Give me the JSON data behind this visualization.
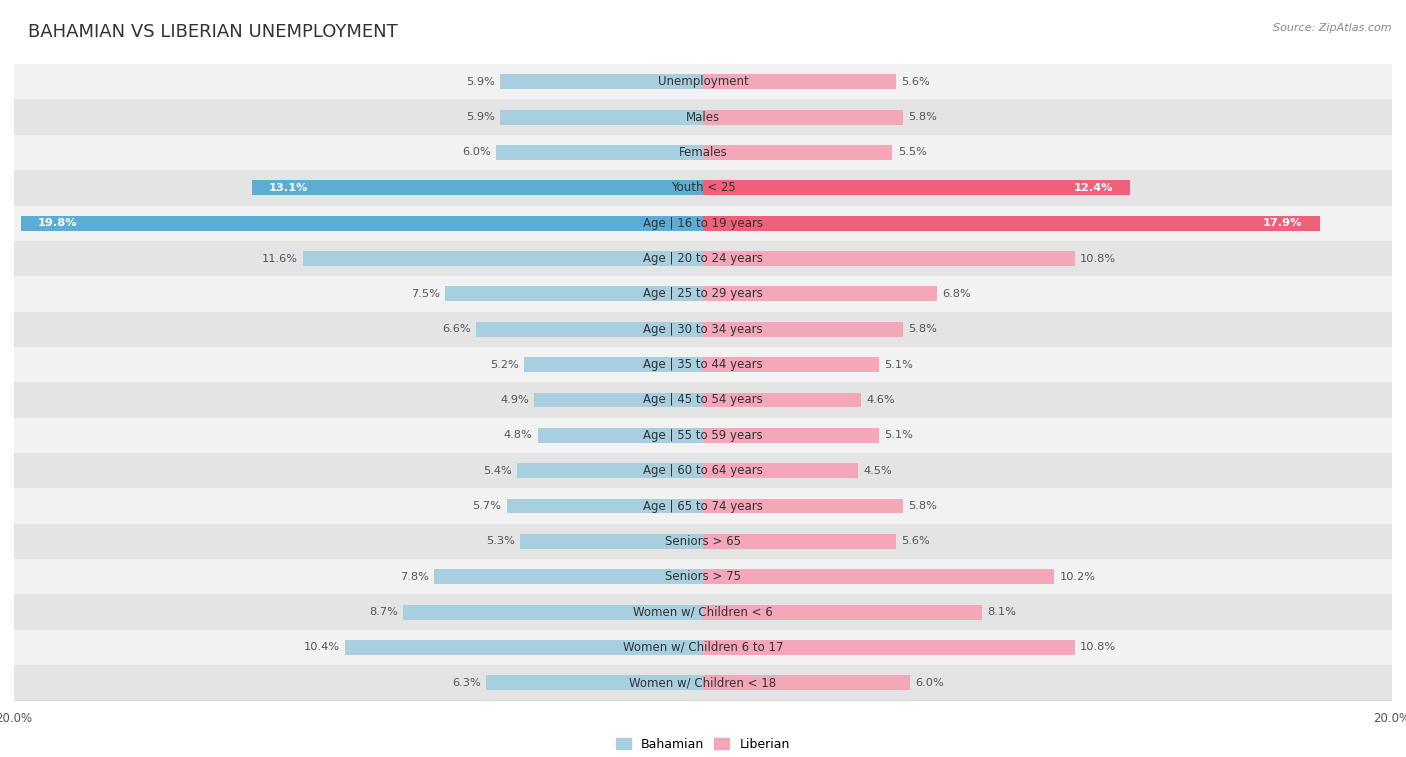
{
  "title": "BAHAMIAN VS LIBERIAN UNEMPLOYMENT",
  "source": "Source: ZipAtlas.com",
  "categories": [
    "Unemployment",
    "Males",
    "Females",
    "Youth < 25",
    "Age | 16 to 19 years",
    "Age | 20 to 24 years",
    "Age | 25 to 29 years",
    "Age | 30 to 34 years",
    "Age | 35 to 44 years",
    "Age | 45 to 54 years",
    "Age | 55 to 59 years",
    "Age | 60 to 64 years",
    "Age | 65 to 74 years",
    "Seniors > 65",
    "Seniors > 75",
    "Women w/ Children < 6",
    "Women w/ Children 6 to 17",
    "Women w/ Children < 18"
  ],
  "bahamian": [
    5.9,
    5.9,
    6.0,
    13.1,
    19.8,
    11.6,
    7.5,
    6.6,
    5.2,
    4.9,
    4.8,
    5.4,
    5.7,
    5.3,
    7.8,
    8.7,
    10.4,
    6.3
  ],
  "liberian": [
    5.6,
    5.8,
    5.5,
    12.4,
    17.9,
    10.8,
    6.8,
    5.8,
    5.1,
    4.6,
    5.1,
    4.5,
    5.8,
    5.6,
    10.2,
    8.1,
    10.8,
    6.0
  ],
  "bahamian_color": "#a8cfe0",
  "liberian_color": "#f4a7b9",
  "highlight_bahamian_color": "#5badd4",
  "highlight_liberian_color": "#f0607a",
  "highlight_rows": [
    3,
    4
  ],
  "bar_height": 0.42,
  "xlim": 20.0,
  "row_bg_light": "#f2f2f2",
  "row_bg_dark": "#e4e4e4",
  "title_fontsize": 13,
  "label_fontsize": 8.5,
  "value_fontsize": 8.2,
  "axis_fontsize": 8.5
}
